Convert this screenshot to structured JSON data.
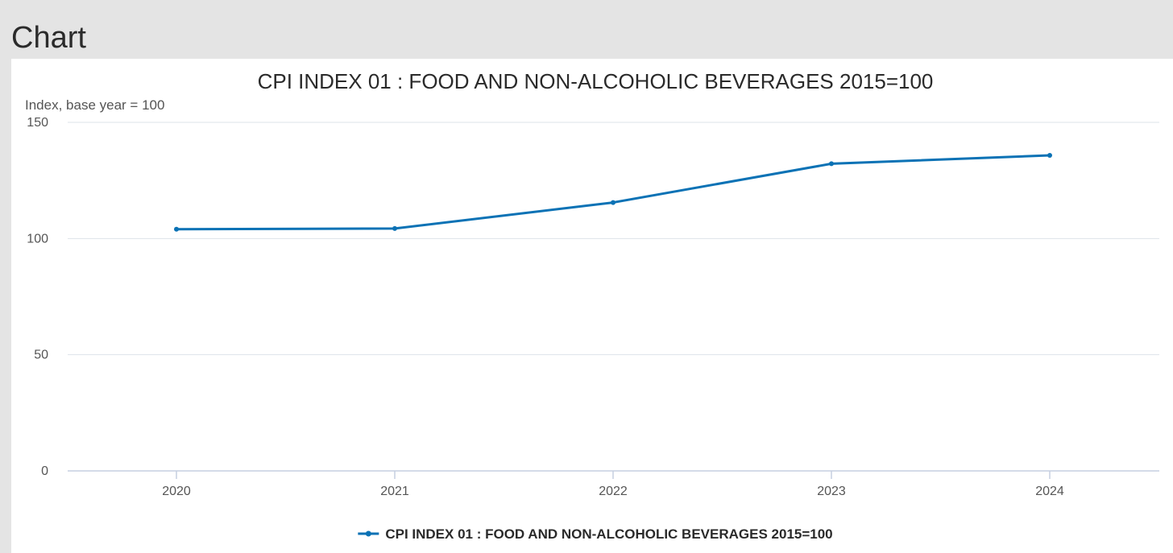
{
  "page": {
    "heading": "Chart"
  },
  "chart_data": {
    "type": "line",
    "title": "CPI INDEX 01 : FOOD AND NON-ALCOHOLIC BEVERAGES 2015=100",
    "unit_label": "Index, base year = 100",
    "xlabel": "",
    "ylabel": "",
    "x": [
      "2020",
      "2021",
      "2022",
      "2023",
      "2024"
    ],
    "ylim": [
      0,
      150
    ],
    "yticks": [
      0,
      50,
      100,
      150
    ],
    "grid": true,
    "legend_position": "bottom",
    "series": [
      {
        "name": "CPI INDEX 01 : FOOD AND NON-ALCOHOLIC BEVERAGES 2015=100",
        "values": [
          104.0,
          104.3,
          115.5,
          132.2,
          135.8
        ],
        "color": "#0b72b5"
      }
    ]
  }
}
